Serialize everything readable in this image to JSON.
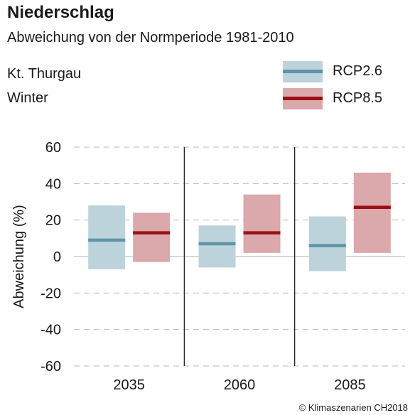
{
  "header": {
    "title": "Niederschlag",
    "subtitle": "Abweichung von der Normperiode 1981-2010",
    "region": "Kt. Thurgau",
    "season": "Winter"
  },
  "legend": {
    "items": [
      {
        "label": "RCP2.6",
        "fill": "#bdd3dc",
        "line": "#5d94a8"
      },
      {
        "label": "RCP8.5",
        "fill": "#dba8ab",
        "line": "#9b1014"
      }
    ]
  },
  "credit": "© Klimaszenarien CH2018",
  "chart_data": {
    "type": "bar",
    "categories": [
      "2035",
      "2060",
      "2085"
    ],
    "ylabel": "Abweichung (%)",
    "ylim": [
      -60,
      60
    ],
    "yticks": [
      60,
      40,
      20,
      0,
      -20,
      -40,
      -60
    ],
    "ytick_labels": [
      "60",
      "40",
      "20",
      "0",
      "-20",
      "-40",
      "-60"
    ],
    "grid": true,
    "series": [
      {
        "name": "RCP2.6",
        "color_fill": "#bdd3dc",
        "color_line": "#5d94a8",
        "low": [
          -7,
          -6,
          -8
        ],
        "median": [
          9,
          7,
          6
        ],
        "high": [
          28,
          17,
          22
        ]
      },
      {
        "name": "RCP8.5",
        "color_fill": "#dba8ab",
        "color_line": "#9b1014",
        "low": [
          -3,
          2,
          2
        ],
        "median": [
          13,
          13,
          27
        ],
        "high": [
          24,
          34,
          46
        ]
      }
    ]
  }
}
